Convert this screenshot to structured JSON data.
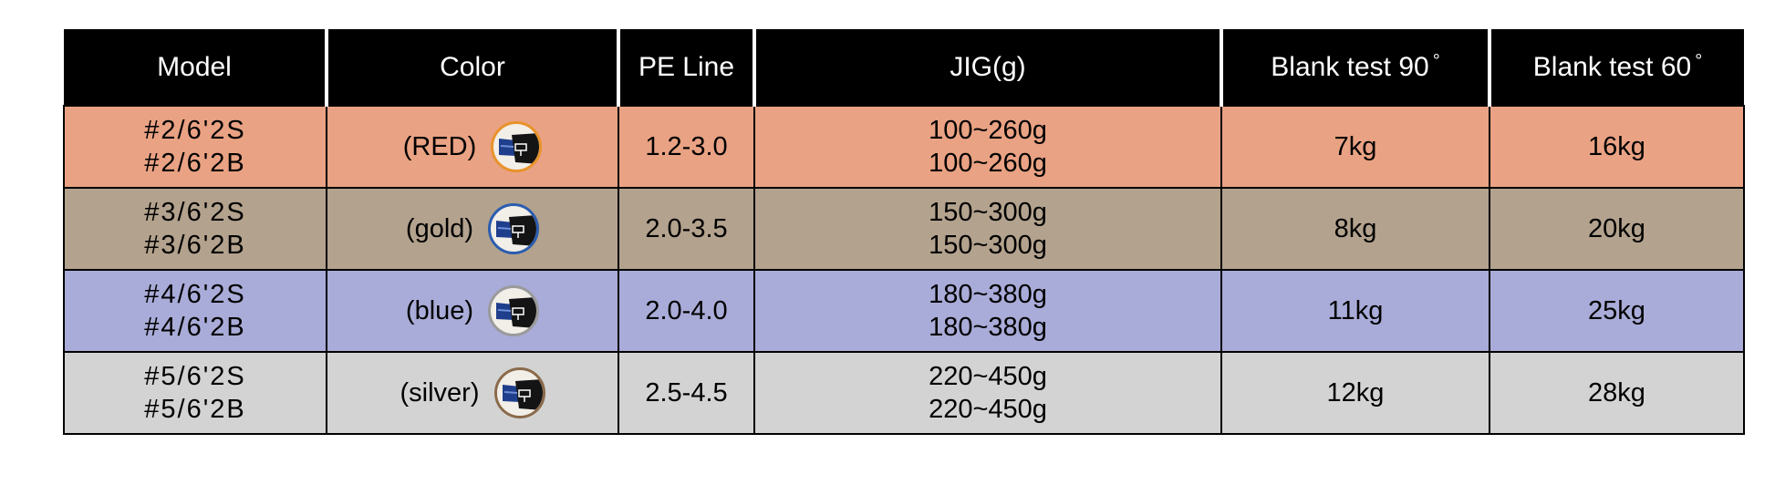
{
  "colors": {
    "header_bg": "#000000",
    "header_text": "#ffffff"
  },
  "headers": {
    "model": "Model",
    "color": "Color",
    "pe_line": "PE Line",
    "jig": "JIG(g)",
    "blank90": "Blank test 90",
    "blank60": "Blank test 60",
    "degree_symbol": "°"
  },
  "rows": [
    {
      "row_color": "#e9a283",
      "model_s": "#2/6'2S",
      "model_b": "#2/6'2B",
      "color_label": "(RED)",
      "swatch_icon": "rod-guide-red-icon",
      "swatch_ring": "#e8932a",
      "pe_line": "1.2-3.0",
      "jig_s": "100~260g",
      "jig_b": "100~260g",
      "blank90": "7kg",
      "blank60": "16kg"
    },
    {
      "row_color": "#b3a28d",
      "model_s": "#3/6'2S",
      "model_b": "#3/6'2B",
      "color_label": "(gold)",
      "swatch_icon": "rod-guide-gold-icon",
      "swatch_ring": "#2a5db0",
      "pe_line": "2.0-3.5",
      "jig_s": "150~300g",
      "jig_b": "150~300g",
      "blank90": "8kg",
      "blank60": "20kg"
    },
    {
      "row_color": "#a9acd8",
      "model_s": "#4/6'2S",
      "model_b": "#4/6'2B",
      "color_label": "(blue)",
      "swatch_icon": "rod-guide-blue-icon",
      "swatch_ring": "#9a9a9a",
      "pe_line": "2.0-4.0",
      "jig_s": "180~380g",
      "jig_b": "180~380g",
      "blank90": "11kg",
      "blank60": "25kg"
    },
    {
      "row_color": "#d3d3d3",
      "model_s": "#5/6'2S",
      "model_b": "#5/6'2B",
      "color_label": "(silver)",
      "swatch_icon": "rod-guide-silver-icon",
      "swatch_ring": "#8a6a4a",
      "pe_line": "2.5-4.5",
      "jig_s": "220~450g",
      "jig_b": "220~450g",
      "blank90": "12kg",
      "blank60": "28kg"
    }
  ]
}
